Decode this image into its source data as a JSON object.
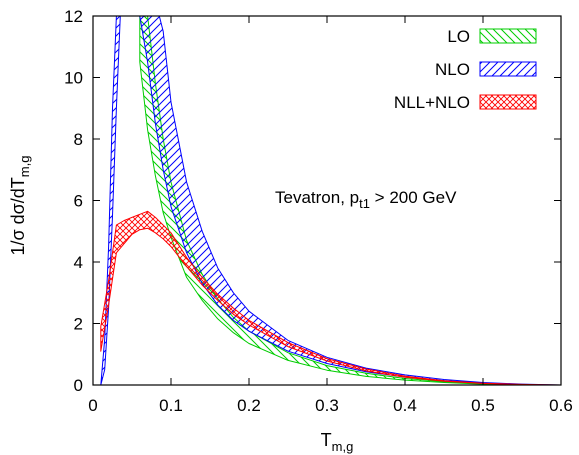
{
  "chart_data": {
    "type": "area",
    "xlabel": "T",
    "xlabel_subscript": "m,g",
    "ylabel": "1/σ  dσ/dT",
    "ylabel_subscript": "m,g",
    "xlim": [
      0,
      0.6
    ],
    "ylim": [
      0,
      12
    ],
    "xticks": [
      0,
      0.1,
      0.2,
      0.3,
      0.4,
      0.5,
      0.6
    ],
    "yticks": [
      0,
      2,
      4,
      6,
      8,
      10,
      12
    ],
    "xtick_labels": [
      "0",
      "0.1",
      "0.2",
      "0.3",
      "0.4",
      "0.5",
      "0.6"
    ],
    "ytick_labels": [
      "0",
      "2",
      "4",
      "6",
      "8",
      "10",
      "12"
    ],
    "grid": false,
    "legend_position": "top-right",
    "annotation": {
      "text": "Tevatron, p",
      "subscript": "t1",
      "suffix": " > 200 GeV"
    },
    "series": [
      {
        "name": "LO",
        "color": "#00cc00",
        "hatch": "diagonal-right",
        "x": [
          0.06,
          0.07,
          0.08,
          0.09,
          0.1,
          0.12,
          0.14,
          0.16,
          0.18,
          0.2,
          0.25,
          0.3,
          0.35,
          0.4,
          0.45,
          0.5,
          0.55,
          0.6
        ],
        "lower": [
          10.5,
          8.3,
          6.8,
          5.6,
          4.8,
          3.5,
          2.75,
          2.15,
          1.7,
          1.35,
          0.8,
          0.48,
          0.28,
          0.16,
          0.08,
          0.03,
          0.01,
          0.0
        ],
        "upper": [
          12.5,
          12.0,
          9.8,
          8.0,
          6.6,
          4.7,
          3.6,
          2.8,
          2.2,
          1.75,
          1.05,
          0.63,
          0.38,
          0.21,
          0.11,
          0.04,
          0.01,
          0.0
        ]
      },
      {
        "name": "NLO",
        "color": "#0000ff",
        "hatch": "diagonal-left",
        "x": [
          0.01,
          0.015,
          0.02,
          0.025,
          0.03,
          0.035,
          0.06,
          0.07,
          0.08,
          0.09,
          0.1,
          0.12,
          0.14,
          0.16,
          0.18,
          0.2,
          0.25,
          0.3,
          0.35,
          0.4,
          0.45,
          0.5,
          0.55,
          0.6
        ],
        "lower": [
          0.0,
          0.5,
          2.5,
          5.5,
          9.0,
          12.0,
          12.0,
          10.5,
          8.5,
          7.0,
          5.8,
          4.3,
          3.3,
          2.6,
          2.1,
          1.75,
          1.1,
          0.7,
          0.43,
          0.26,
          0.14,
          0.06,
          0.02,
          0.0
        ],
        "upper": [
          0.0,
          1.5,
          4.5,
          9.0,
          12.0,
          12.5,
          12.5,
          12.5,
          12.5,
          11.5,
          9.2,
          6.6,
          5.0,
          3.8,
          3.0,
          2.4,
          1.45,
          0.9,
          0.55,
          0.33,
          0.18,
          0.08,
          0.03,
          0.0
        ]
      },
      {
        "name": "NLL+NLO",
        "color": "#ff0000",
        "hatch": "cross",
        "x": [
          0.01,
          0.02,
          0.03,
          0.04,
          0.05,
          0.06,
          0.07,
          0.08,
          0.09,
          0.1,
          0.12,
          0.14,
          0.16,
          0.18,
          0.2,
          0.25,
          0.3,
          0.35,
          0.4,
          0.45,
          0.5,
          0.55,
          0.6
        ],
        "lower": [
          1.1,
          2.6,
          4.3,
          4.6,
          4.9,
          5.05,
          5.1,
          4.95,
          4.75,
          4.5,
          3.85,
          3.25,
          2.75,
          2.3,
          1.95,
          1.25,
          0.78,
          0.46,
          0.25,
          0.12,
          0.05,
          0.01,
          0.0
        ],
        "upper": [
          1.9,
          3.4,
          5.2,
          5.35,
          5.45,
          5.55,
          5.65,
          5.45,
          5.2,
          4.95,
          4.15,
          3.5,
          2.95,
          2.5,
          2.1,
          1.38,
          0.86,
          0.52,
          0.29,
          0.14,
          0.06,
          0.02,
          0.0
        ]
      }
    ]
  }
}
